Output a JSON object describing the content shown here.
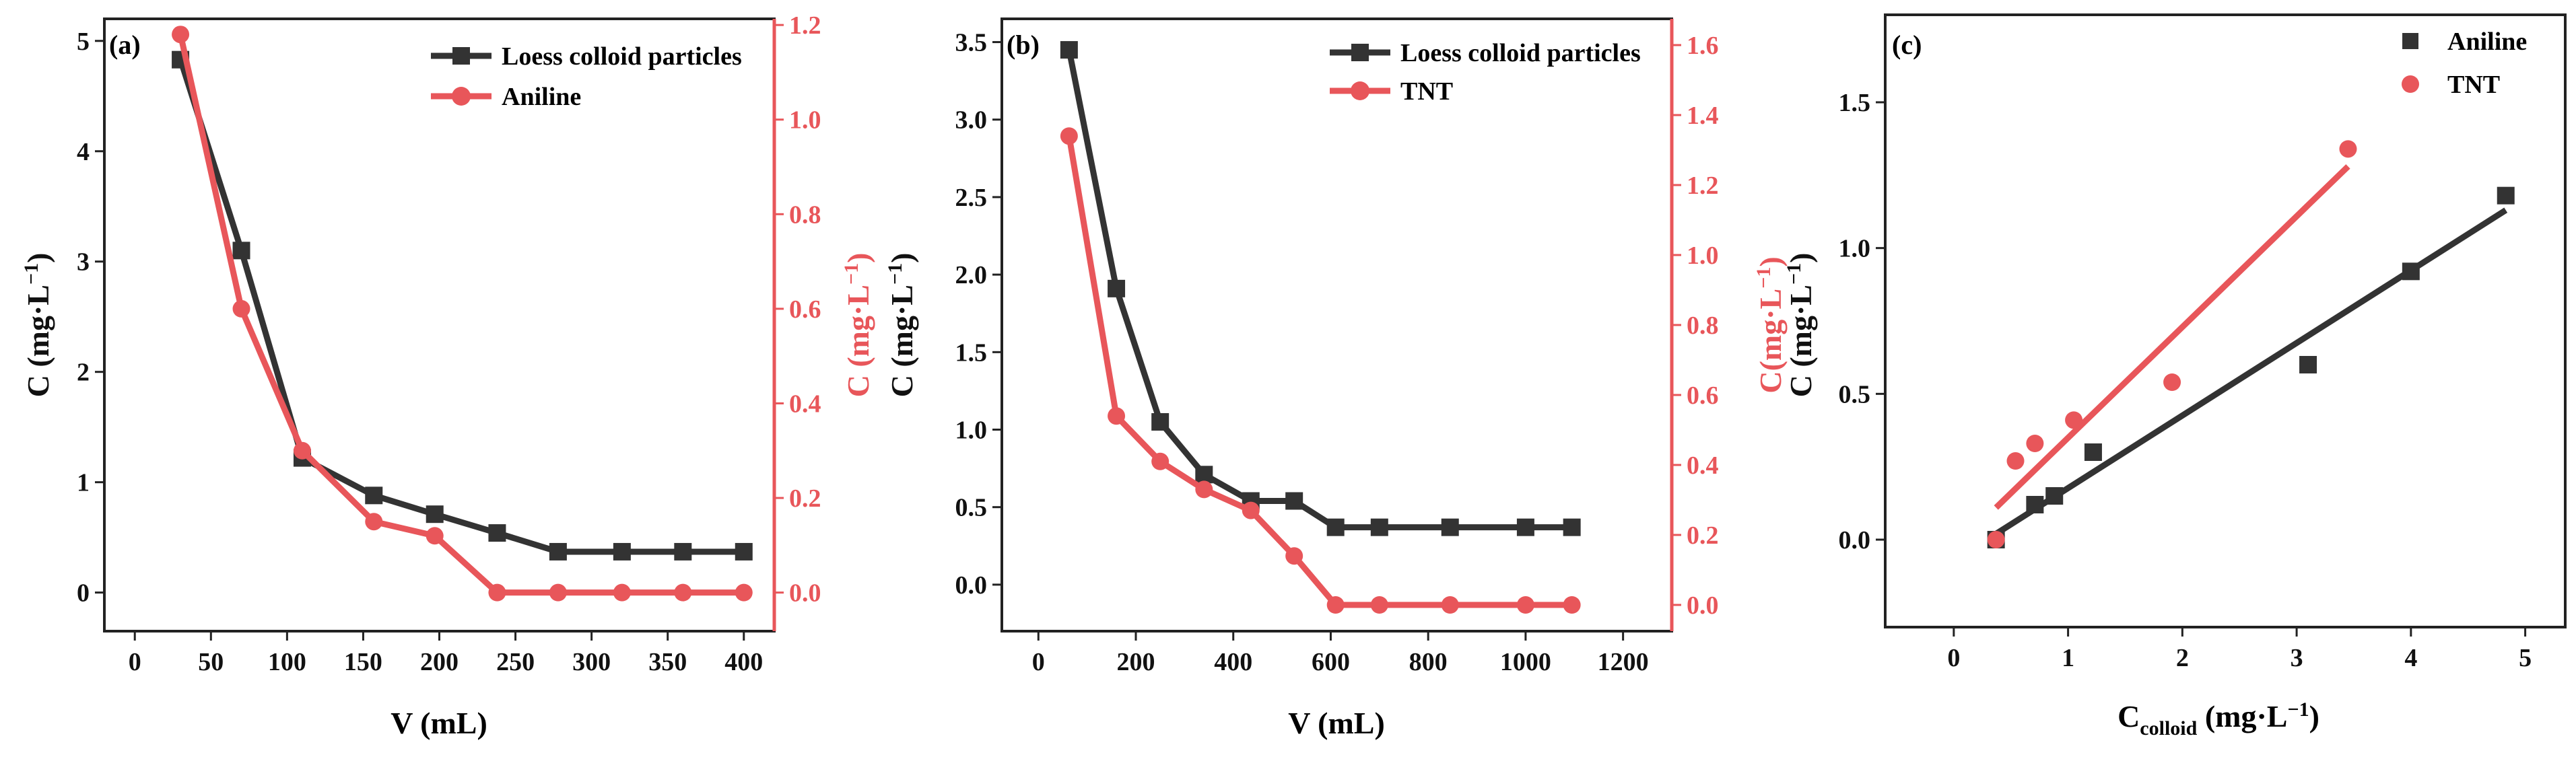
{
  "colors": {
    "black": "#333333",
    "red": "#e8565a"
  },
  "chart_data": [
    {
      "type": "line",
      "panel_label": "(a)",
      "xlabel": "V (mL)",
      "ylabel": "C (mg·L",
      "ylabel_sup": "−1",
      "ylabel_close": ")",
      "ylabel_right": "C (mg·L",
      "ylabel_right_sup": "−1",
      "ylabel_right_close": ")",
      "xlim": [
        -20,
        420
      ],
      "ylim": [
        -0.35,
        5.2
      ],
      "ylim_right": [
        -0.0816,
        1.213
      ],
      "xticks": [
        0,
        50,
        100,
        150,
        200,
        250,
        300,
        350,
        400
      ],
      "yticks": [
        0,
        1,
        2,
        3,
        4,
        5
      ],
      "yticks_right": [
        0.0,
        0.2,
        0.4,
        0.6,
        0.8,
        1.0,
        1.2
      ],
      "xtick_labels": [
        "0",
        "50",
        "100",
        "150",
        "200",
        "250",
        "300",
        "350",
        "400"
      ],
      "ytick_labels": [
        "0",
        "1",
        "2",
        "3",
        "4",
        "5"
      ],
      "ytick_right_labels": [
        "0.0",
        "0.2",
        "0.4",
        "0.6",
        "0.8",
        "1.0",
        "1.2"
      ],
      "legend_position": "top-right",
      "series": [
        {
          "name": "Loess colloid particles",
          "axis": "left",
          "marker": "square",
          "color": "#333333",
          "x": [
            30,
            70,
            110,
            157,
            197,
            238,
            278,
            320,
            360,
            400
          ],
          "y": [
            4.83,
            3.1,
            1.22,
            0.88,
            0.71,
            0.54,
            0.37,
            0.37,
            0.37,
            0.37
          ]
        },
        {
          "name": "Aniline",
          "axis": "right",
          "marker": "circle",
          "color": "#e8565a",
          "x": [
            30,
            70,
            110,
            157,
            197,
            238,
            278,
            320,
            360,
            400
          ],
          "y": [
            1.18,
            0.6,
            0.3,
            0.15,
            0.12,
            0.0,
            0.0,
            0.0,
            0.0,
            0.0
          ]
        }
      ]
    },
    {
      "type": "line",
      "panel_label": "(b)",
      "xlabel": "V (mL)",
      "ylabel": "C (mg·L",
      "ylabel_sup": "−1",
      "ylabel_close": ")",
      "ylabel_right": "C(mg·L",
      "ylabel_right_sup": "−1",
      "ylabel_right_close": ")",
      "xlim": [
        -75,
        1300
      ],
      "ylim": [
        -0.3,
        3.65
      ],
      "ylim_right": [
        -0.075,
        1.675
      ],
      "xticks": [
        0,
        200,
        400,
        600,
        800,
        1000,
        1200
      ],
      "yticks": [
        0.0,
        0.5,
        1.0,
        1.5,
        2.0,
        2.5,
        3.0,
        3.5
      ],
      "yticks_right": [
        0.0,
        0.2,
        0.4,
        0.6,
        0.8,
        1.0,
        1.2,
        1.4,
        1.6
      ],
      "xtick_labels": [
        "0",
        "200",
        "400",
        "600",
        "800",
        "1000",
        "1200"
      ],
      "ytick_labels": [
        "0.0",
        "0.5",
        "1.0",
        "1.5",
        "2.0",
        "2.5",
        "3.0",
        "3.5"
      ],
      "ytick_right_labels": [
        "0.0",
        "0.2",
        "0.4",
        "0.6",
        "0.8",
        "1.0",
        "1.2",
        "1.4",
        "1.6"
      ],
      "legend_position": "top-right",
      "series": [
        {
          "name": "Loess colloid particles",
          "axis": "left",
          "marker": "square",
          "color": "#333333",
          "x": [
            63,
            160,
            250,
            340,
            436,
            525,
            610,
            700,
            845,
            1000,
            1095
          ],
          "y": [
            3.45,
            1.91,
            1.05,
            0.71,
            0.54,
            0.54,
            0.37,
            0.37,
            0.37,
            0.37,
            0.37
          ]
        },
        {
          "name": "TNT",
          "axis": "right",
          "marker": "circle",
          "color": "#e8565a",
          "x": [
            63,
            160,
            250,
            340,
            436,
            525,
            610,
            700,
            845,
            1000,
            1095
          ],
          "y": [
            1.34,
            0.54,
            0.41,
            0.33,
            0.27,
            0.14,
            0.0,
            0.0,
            0.0,
            0.0,
            0.0
          ]
        }
      ]
    },
    {
      "type": "scatter",
      "panel_label": "(c)",
      "xlabel": "C",
      "xlabel_sub": "colloid",
      "xlabel_unit": " (mg·L",
      "xlabel_sup": "−1",
      "xlabel_close": ")",
      "ylabel": "C (mg·L",
      "ylabel_sup": "−1",
      "ylabel_close": ")",
      "xlim": [
        -0.6,
        5.35
      ],
      "ylim": [
        -0.3,
        1.8
      ],
      "xticks": [
        0,
        1,
        2,
        3,
        4,
        5
      ],
      "yticks": [
        0.0,
        0.5,
        1.0,
        1.5
      ],
      "xtick_labels": [
        "0",
        "1",
        "2",
        "3",
        "4",
        "5"
      ],
      "ytick_labels": [
        "0.0",
        "0.5",
        "1.0",
        "1.5"
      ],
      "legend_position": "top-right",
      "series": [
        {
          "name": "Aniline",
          "marker": "square",
          "color": "#333333",
          "x": [
            0.37,
            0.71,
            0.88,
            1.22,
            3.1,
            4.0,
            4.83
          ],
          "y": [
            0.0,
            0.12,
            0.15,
            0.3,
            0.6,
            0.92,
            1.18
          ],
          "fit": {
            "x": [
              0.37,
              4.83
            ],
            "y": [
              0.02,
              1.13
            ]
          }
        },
        {
          "name": "TNT",
          "marker": "circle",
          "color": "#e8565a",
          "x": [
            0.37,
            0.54,
            0.71,
            1.05,
            1.91,
            3.45
          ],
          "y": [
            0.0,
            0.27,
            0.33,
            0.41,
            0.54,
            1.34
          ],
          "fit": {
            "x": [
              0.37,
              3.45
            ],
            "y": [
              0.11,
              1.28
            ]
          }
        }
      ]
    }
  ]
}
